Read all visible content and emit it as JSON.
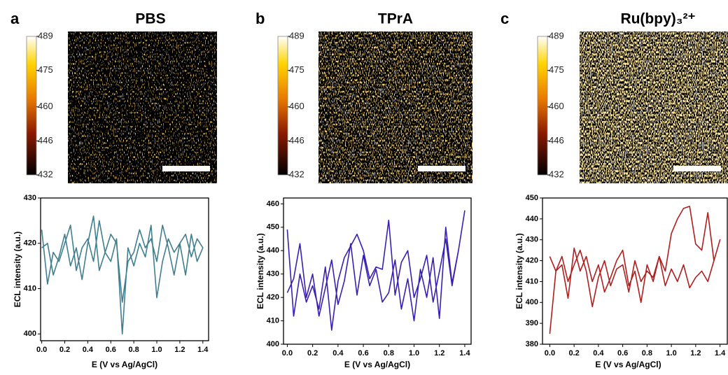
{
  "chart_data": [
    {
      "type": "line",
      "panel": "a",
      "title": "PBS",
      "color": "#3f7f90",
      "colorbar_ticks": [
        432,
        446,
        460,
        475,
        489
      ],
      "xlabel": "E (V vs Ag/AgCl)",
      "ylabel": "ECL intensity (a.u.)",
      "xlim": [
        -0.01,
        1.45
      ],
      "ylim": [
        398.5,
        430
      ],
      "xticks": [
        {
          "value": 0,
          "label": "0.0"
        },
        0.2,
        0.4,
        0.6,
        0.8,
        {
          "value": 1,
          "label": "1.0"
        },
        1.2,
        1.4
      ],
      "yticks": [
        400,
        410,
        420,
        430
      ],
      "x": [
        0,
        0.05,
        0.1,
        0.15,
        0.2,
        0.25,
        0.3,
        0.35,
        0.4,
        0.45,
        0.5,
        0.55,
        0.6,
        0.65,
        0.7,
        0.75,
        0.8,
        0.85,
        0.9,
        0.95,
        1,
        1.05,
        1.1,
        1.15,
        1.2,
        1.25,
        1.3,
        1.35,
        1.4,
        1.35,
        1.3,
        1.25,
        1.2,
        1.15,
        1.1,
        1.05,
        1,
        0.95,
        0.9,
        0.85,
        0.8,
        0.75,
        0.7,
        0.65,
        0.6,
        0.55,
        0.5,
        0.45,
        0.4,
        0.35,
        0.3,
        0.25,
        0.2,
        0.15,
        0.1,
        0.05,
        0
      ],
      "values": [
        423,
        411,
        418,
        416,
        420,
        424,
        414,
        419,
        421,
        416,
        425,
        418,
        422,
        420,
        407,
        416,
        418,
        423,
        419,
        421,
        416,
        424,
        419,
        413,
        420,
        422,
        417,
        421,
        419,
        416,
        422,
        413,
        420,
        418,
        421,
        416,
        408,
        424,
        417,
        420,
        415,
        419,
        400,
        421,
        416,
        418,
        414,
        426,
        420,
        412,
        419,
        415,
        422,
        417,
        413,
        420,
        419
      ]
    },
    {
      "type": "line",
      "panel": "b",
      "title": "TPrA",
      "color": "#3a1fb3",
      "colorbar_ticks": [
        432,
        446,
        460,
        475,
        489
      ],
      "xlabel": "E (V vs Ag/AgCl)",
      "ylabel": "ECL intensity (a.u.)",
      "xlim": [
        -0.03,
        1.45
      ],
      "ylim": [
        400,
        462.5
      ],
      "xticks": [
        {
          "value": 0,
          "label": "0.0"
        },
        0.2,
        0.4,
        0.6,
        0.8,
        {
          "value": 1,
          "label": "1.0"
        },
        1.2,
        1.4
      ],
      "yticks": [
        400,
        410,
        420,
        430,
        440,
        450,
        460
      ],
      "x": [
        0,
        0.05,
        0.1,
        0.15,
        0.2,
        0.25,
        0.3,
        0.35,
        0.4,
        0.45,
        0.5,
        0.55,
        0.6,
        0.65,
        0.7,
        0.75,
        0.8,
        0.85,
        0.9,
        0.95,
        1,
        1.05,
        1.1,
        1.15,
        1.2,
        1.25,
        1.3,
        1.35,
        1.4,
        1.35,
        1.3,
        1.25,
        1.2,
        1.15,
        1.1,
        1.05,
        1,
        0.95,
        0.9,
        0.85,
        0.8,
        0.75,
        0.7,
        0.65,
        0.6,
        0.55,
        0.5,
        0.45,
        0.4,
        0.35,
        0.3,
        0.25,
        0.2,
        0.15,
        0.1,
        0.05,
        0
      ],
      "values": [
        449,
        412,
        430,
        418,
        425,
        415,
        433,
        406,
        427,
        437,
        442,
        447,
        440,
        428,
        433,
        432,
        453,
        421,
        435,
        440,
        420,
        428,
        438,
        418,
        431,
        445,
        425,
        440,
        457,
        440,
        426,
        450,
        411,
        437,
        420,
        432,
        410,
        428,
        415,
        436,
        422,
        418,
        432,
        425,
        438,
        421,
        443,
        427,
        417,
        436,
        424,
        412,
        430,
        420,
        443,
        428,
        422
      ]
    },
    {
      "type": "line",
      "panel": "c",
      "title": "Ru(bpy)₃²⁺",
      "color": "#b01e1e",
      "colorbar_ticks": [
        432,
        446,
        460,
        475,
        489
      ],
      "xlabel": "E (V vs Ag/AgCl)",
      "ylabel": "ECL intensity (a.u.)",
      "xlim": [
        -0.06,
        1.46
      ],
      "ylim": [
        380,
        450
      ],
      "xticks": [
        {
          "value": 0,
          "label": "0.0"
        },
        0.2,
        0.4,
        0.6,
        0.8,
        {
          "value": 1,
          "label": "1.0"
        },
        1.2,
        1.4
      ],
      "yticks": [
        380,
        390,
        400,
        410,
        420,
        430,
        440,
        450
      ],
      "x": [
        0,
        0.05,
        0.1,
        0.15,
        0.2,
        0.25,
        0.3,
        0.35,
        0.4,
        0.45,
        0.5,
        0.55,
        0.6,
        0.65,
        0.7,
        0.75,
        0.8,
        0.85,
        0.9,
        0.95,
        1,
        1.05,
        1.1,
        1.15,
        1.2,
        1.25,
        1.3,
        1.35,
        1.4,
        1.35,
        1.3,
        1.25,
        1.2,
        1.15,
        1.1,
        1.05,
        1,
        0.95,
        0.9,
        0.85,
        0.8,
        0.75,
        0.7,
        0.65,
        0.6,
        0.55,
        0.5,
        0.45,
        0.4,
        0.35,
        0.3,
        0.25,
        0.2,
        0.15,
        0.1,
        0.05,
        0
      ],
      "values": [
        385,
        415,
        422,
        410,
        418,
        425,
        415,
        398,
        412,
        420,
        408,
        416,
        418,
        405,
        420,
        410,
        415,
        412,
        422,
        408,
        416,
        410,
        418,
        407,
        412,
        415,
        410,
        420,
        430,
        420,
        443,
        425,
        428,
        446,
        445,
        440,
        433,
        415,
        422,
        410,
        418,
        400,
        415,
        408,
        425,
        420,
        412,
        405,
        418,
        410,
        422,
        415,
        426,
        402,
        418,
        415,
        422
      ]
    }
  ]
}
